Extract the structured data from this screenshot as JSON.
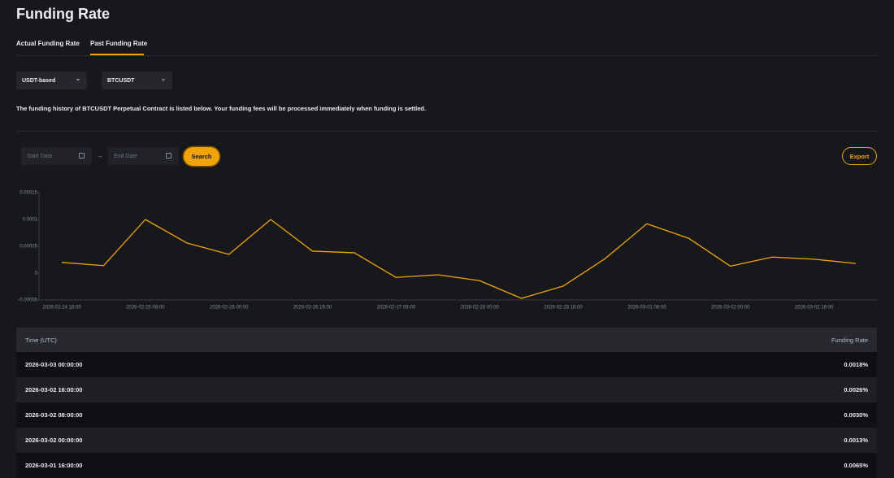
{
  "header": {
    "title": "Funding Rate"
  },
  "tabs": [
    "Actual Funding Rate",
    "Past Funding Rate"
  ],
  "filters": {
    "margin": "USDT-based",
    "symbol": "BTCUSDT"
  },
  "description": "The funding history of BTCUSDT Perpetual Contract is listed below. Your funding fees will be processed immediately when funding is settled.",
  "date_range": {
    "start": "Start Date",
    "end": "End Date"
  },
  "buttons": {
    "search": "Search",
    "export": "Export"
  },
  "chart_data": {
    "type": "line",
    "categories": [
      "2026-02-24 16:00",
      null,
      "2026-02-25 08:00",
      null,
      "2026-02-26 00:00",
      null,
      "2026-02-26 16:00",
      null,
      "2026-02-27 08:00",
      null,
      "2026-02-28 00:00",
      null,
      "2026-02-28 16:00",
      null,
      "2026-03-01 08:00",
      null,
      "2026-03-02 00:00",
      null,
      "2026-03-02 16:00",
      null
    ],
    "values": [
      2e-05,
      1.4e-05,
      0.0001,
      5.6e-05,
      3.5e-05,
      0.0001,
      4.1e-05,
      3.8e-05,
      -8e-06,
      -3e-06,
      -1.4e-05,
      -4.7e-05,
      -2.4e-05,
      2.7e-05,
      9.2e-05,
      6.5e-05,
      1.3e-05,
      3e-05,
      2.6e-05,
      1.8e-05
    ],
    "color": "#f0a30a",
    "ylim": [
      -5e-05,
      0.00015
    ],
    "yticks": [
      -5e-05,
      0,
      5e-05,
      0.0001,
      0.00015
    ],
    "grid": false
  },
  "table": {
    "columns": [
      "Time (UTC)",
      "Funding Rate"
    ],
    "rows": [
      [
        "2026-03-03 00:00:00",
        "0.0018%"
      ],
      [
        "2026-03-02 16:00:00",
        "0.0026%"
      ],
      [
        "2026-03-02 08:00:00",
        "0.0030%"
      ],
      [
        "2026-03-02 00:00:00",
        "0.0013%"
      ],
      [
        "2026-03-01 16:00:00",
        "0.0065%"
      ]
    ]
  }
}
